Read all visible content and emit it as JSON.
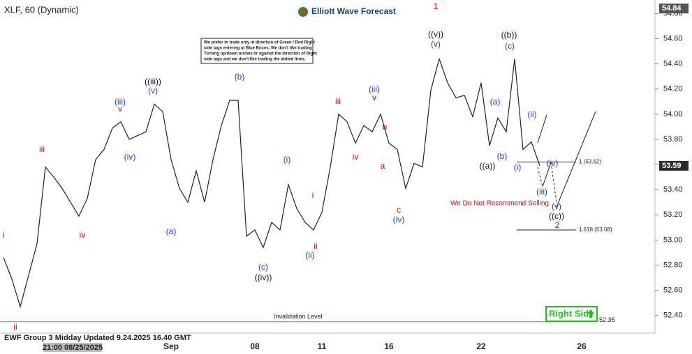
{
  "header": {
    "symbol": "XLF, 60 (Dynamic)",
    "logo": "Elliott Wave Forecast"
  },
  "note": [
    "We prefer to trade only in direction of Green / Red Right",
    "side tags entering at Blue Boxes. We don't like trading",
    "Turning up/down arrows or against the direction of Right",
    "side tags and we don't like trading the dotted lines."
  ],
  "chart_data": {
    "type": "line",
    "categories": [
      null,
      null,
      null,
      null,
      null,
      null,
      null,
      null,
      null,
      null,
      null,
      null,
      null,
      null,
      null,
      null,
      null,
      null,
      null,
      null,
      "Sep",
      null,
      null,
      null,
      null,
      null,
      null,
      null,
      null,
      null,
      "08",
      null,
      null,
      null,
      null,
      null,
      null,
      null,
      "11",
      null,
      null,
      null,
      null,
      null,
      null,
      null,
      "16",
      null,
      null,
      null,
      null,
      null,
      null,
      null,
      null,
      null,
      null,
      "22",
      null,
      null,
      null,
      null,
      null,
      null,
      null,
      null,
      null,
      null,
      null,
      "26"
    ],
    "values": [
      52.86,
      52.69,
      52.47,
      52.72,
      52.97,
      53.58,
      53.5,
      53.41,
      53.3,
      53.19,
      53.33,
      53.64,
      53.72,
      53.89,
      53.94,
      53.8,
      53.83,
      53.86,
      54.08,
      54.02,
      53.64,
      53.41,
      53.3,
      53.55,
      53.3,
      53.64,
      53.91,
      54.11,
      54.11,
      53.03,
      53.08,
      52.94,
      53.14,
      53.08,
      53.44,
      53.25,
      53.14,
      53.08,
      53.22,
      53.58,
      54.0,
      53.94,
      53.77,
      53.91,
      53.86,
      54.0,
      53.77,
      53.72,
      53.41,
      53.61,
      53.58,
      54.19,
      54.44,
      54.25,
      54.13,
      54.15,
      53.98,
      54.25,
      53.75,
      53.97,
      53.86,
      54.44,
      53.72,
      53.78,
      53.59,
      null,
      null,
      null,
      null,
      null
    ],
    "color": "#222222",
    "ylim": [
      52.26,
      54.88
    ],
    "yticks": [
      {
        "value": 52.4,
        "label": "52.40"
      },
      {
        "value": 52.6,
        "label": "52.60"
      },
      {
        "value": 52.8,
        "label": "52.80"
      },
      {
        "value": 53.0,
        "label": "53.00"
      },
      {
        "value": 53.2,
        "label": "53.20"
      },
      {
        "value": 53.4,
        "label": "53.40"
      },
      {
        "value": 53.6,
        "label": "53.60"
      },
      {
        "value": 53.8,
        "label": "53.80"
      },
      {
        "value": 54.0,
        "label": "54.00"
      },
      {
        "value": 54.2,
        "label": "54.20"
      },
      {
        "value": 54.4,
        "label": "54.40"
      },
      {
        "value": 54.6,
        "label": "54.60"
      },
      {
        "value": 54.8,
        "label": "54.80"
      }
    ],
    "price_tags": [
      {
        "value": 54.84,
        "label": "54.84"
      },
      {
        "value": 53.59,
        "label": "53.59"
      }
    ],
    "levels": [
      {
        "value": 53.62,
        "label": "1 (53.62)"
      },
      {
        "value": 53.08,
        "label": "1.618 (53.08)"
      }
    ],
    "invalidation": {
      "value": 52.35,
      "label": "52.35",
      "text": "Invalidation Level"
    },
    "annotations": [
      "i",
      "ii",
      "iii",
      "iv",
      "v",
      "(iii)",
      "(v)",
      "((iii))",
      "(iv)",
      "(a)",
      "(b)",
      "(c)",
      "((iv))",
      "(i)",
      "i",
      "ii",
      "(ii)",
      "iii",
      "iv",
      "(iii)",
      "v",
      "b",
      "a",
      "c",
      "(iv)",
      "1",
      "((v))",
      "(v)",
      "(a)",
      "(b)",
      "((a))",
      "((b))",
      "(c)",
      "(i)",
      "(ii)",
      "(iv)",
      "(iii)",
      "(v)",
      "((c))",
      "2"
    ],
    "warning": "We Do Not Recommend Selling",
    "right_side": "Right Side",
    "crosshair_label": "21:00 08/25/2025"
  },
  "footer": "EWF Group 3 Midday Updated 9.24.2025 16.40 GMT"
}
